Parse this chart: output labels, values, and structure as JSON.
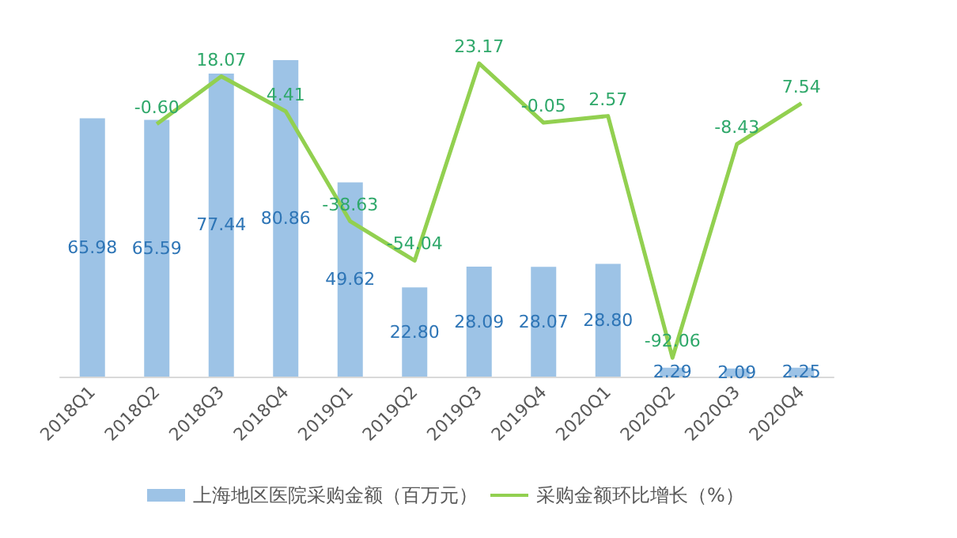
{
  "chart_data": {
    "type": "bar",
    "categories": [
      "2018Q1",
      "2018Q2",
      "2018Q3",
      "2018Q4",
      "2019Q1",
      "2019Q2",
      "2019Q3",
      "2019Q4",
      "2020Q1",
      "2020Q2",
      "2020Q3",
      "2020Q4"
    ],
    "series": [
      {
        "name": "上海地区医院采购金额（百万元）",
        "color": "#9dc3e6",
        "values": [
          65.98,
          65.59,
          77.44,
          80.86,
          49.62,
          22.8,
          28.09,
          28.07,
          28.8,
          2.29,
          2.09,
          2.25
        ],
        "value_labels": [
          "65.98",
          "65.59",
          "77.44",
          "80.86",
          "49.62",
          "22.80",
          "28.09",
          "28.07",
          "28.80",
          "2.29",
          "2.09",
          "2.25"
        ]
      },
      {
        "name": "采购金额环比增长（%）",
        "type": "line",
        "axis": "y2",
        "color": "#92d050",
        "values": [
          null,
          -0.6,
          18.07,
          4.41,
          -38.63,
          -54.04,
          23.17,
          -0.05,
          2.57,
          -92.06,
          -8.43,
          7.54
        ],
        "value_labels": [
          null,
          "-0.60",
          "18.07",
          "4.41",
          "-38.63",
          "-54.04",
          "23.17",
          "-0.05",
          "2.57",
          "-92.06",
          "-8.43",
          "7.54"
        ]
      }
    ],
    "legend": "bottom",
    "marker": "none",
    "tick_labels": "x"
  }
}
